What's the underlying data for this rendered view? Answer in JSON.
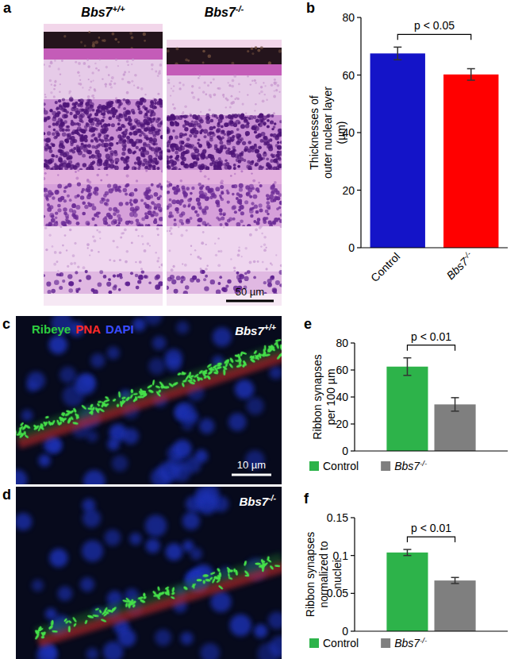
{
  "panels": [
    {
      "label": "a",
      "images": [
        {
          "caption": "Bbs7+/+"
        },
        {
          "caption": "Bbs7-/-"
        }
      ],
      "scale_bar": "50 µm"
    },
    {
      "label": "c",
      "caption": "Bbs7+/+",
      "stains": [
        {
          "text": "Ribeye",
          "color": "#2ecc40"
        },
        {
          "text": "PNA",
          "color": "#ff2a2a"
        },
        {
          "text": "DAPI",
          "color": "#3a4cff"
        }
      ],
      "scale_bar": "10 µm"
    },
    {
      "label": "d",
      "caption": "Bbs7-/-"
    }
  ],
  "chart_data": [
    {
      "type": "bar",
      "label": "b",
      "categories": [
        "Control",
        "Bbs7-/-"
      ],
      "values": [
        67.5,
        60.2
      ],
      "errors": [
        2.2,
        2.0
      ],
      "colors": [
        "#1414c8",
        "#ff0000"
      ],
      "ylabel": "Thicknesses of outer nuclear layer (µm)",
      "ylim": [
        0,
        80
      ],
      "yticks": [
        0,
        20,
        40,
        60,
        80
      ],
      "annotations": [
        "p < 0.05"
      ]
    },
    {
      "type": "bar",
      "label": "e",
      "categories": [
        null
      ],
      "series": [
        {
          "name": "Control",
          "color": "#2db34a",
          "values": [
            62.5
          ],
          "errors": [
            6.5
          ]
        },
        {
          "name": "Bbs7-/-",
          "color": "#7f7f7f",
          "values": [
            34.5
          ],
          "errors": [
            5.0
          ]
        }
      ],
      "ylabel": "Ribbon synapses per 100 µm",
      "ylim": [
        0,
        80
      ],
      "yticks": [
        0,
        20,
        40,
        60,
        80
      ],
      "legend": "bottom",
      "tick_labels": "y",
      "annotations": [
        "p < 0.01"
      ]
    },
    {
      "type": "bar",
      "label": "f",
      "categories": [
        null
      ],
      "series": [
        {
          "name": "Control",
          "color": "#2db34a",
          "values": [
            0.104
          ],
          "errors": [
            0.004
          ]
        },
        {
          "name": "Bbs7-/-",
          "color": "#7f7f7f",
          "values": [
            0.067
          ],
          "errors": [
            0.004
          ]
        }
      ],
      "ylabel": "Ribbon synapses normalized to nuclei",
      "ylim": [
        0,
        0.15
      ],
      "yticks": [
        0,
        0.05,
        0.1,
        0.15
      ],
      "legend": "bottom",
      "tick_labels": "y",
      "annotations": [
        "p < 0.01"
      ]
    }
  ]
}
